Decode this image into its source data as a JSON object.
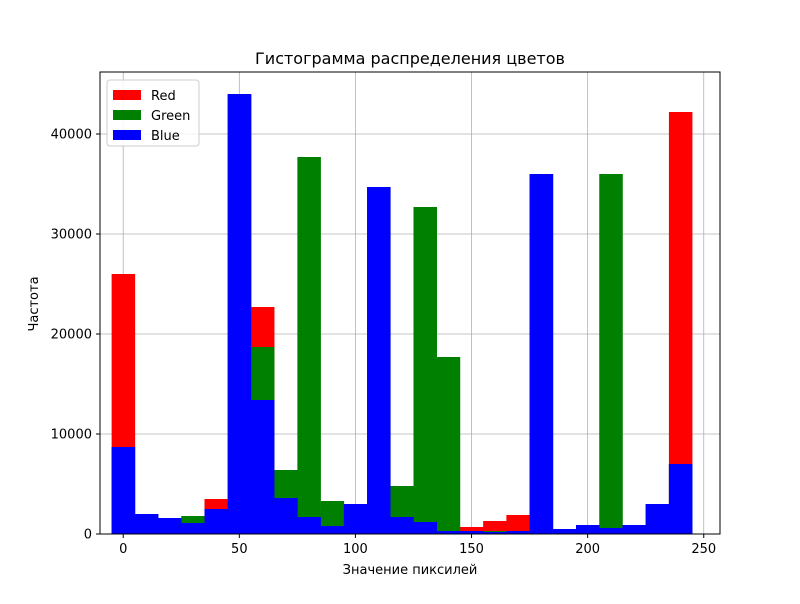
{
  "chart_data": {
    "type": "bar",
    "title": "Гистограмма распределения цветов",
    "xlabel": "Значение пиксилей",
    "ylabel": "Частота",
    "xlim": [
      -10,
      257
    ],
    "ylim": [
      0,
      46200
    ],
    "xticks": [
      0,
      50,
      100,
      150,
      200,
      250
    ],
    "yticks": [
      0,
      10000,
      20000,
      30000,
      40000
    ],
    "grid": true,
    "legend_position": "top-left",
    "bin_edges": [
      -5,
      5,
      15,
      25,
      35,
      45,
      55,
      65,
      75,
      85,
      95,
      105,
      115,
      125,
      135,
      145,
      155,
      165,
      175,
      185,
      195,
      205,
      215,
      225,
      235,
      245
    ],
    "series": [
      {
        "name": "Red",
        "color": "#ff0000",
        "values": [
          26000,
          2000,
          1600,
          1600,
          3500,
          44000,
          22700,
          3600,
          1700,
          800,
          3000,
          2000,
          1700,
          1200,
          300,
          700,
          1300,
          1900,
          36000,
          500,
          900,
          600,
          900,
          3000,
          42200
        ]
      },
      {
        "name": "Green",
        "color": "#008000",
        "values": [
          8700,
          2000,
          1600,
          1800,
          2500,
          44000,
          18700,
          6400,
          37700,
          3300,
          3000,
          34700,
          4800,
          32700,
          17700,
          300,
          300,
          300,
          36000,
          500,
          900,
          36000,
          900,
          3000,
          7000
        ]
      },
      {
        "name": "Blue",
        "color": "#0000ff",
        "values": [
          8700,
          2000,
          1600,
          1100,
          2500,
          44000,
          13400,
          3600,
          1700,
          800,
          3000,
          34700,
          1700,
          1200,
          300,
          300,
          200,
          300,
          36000,
          500,
          900,
          600,
          900,
          3000,
          7000
        ]
      }
    ]
  }
}
